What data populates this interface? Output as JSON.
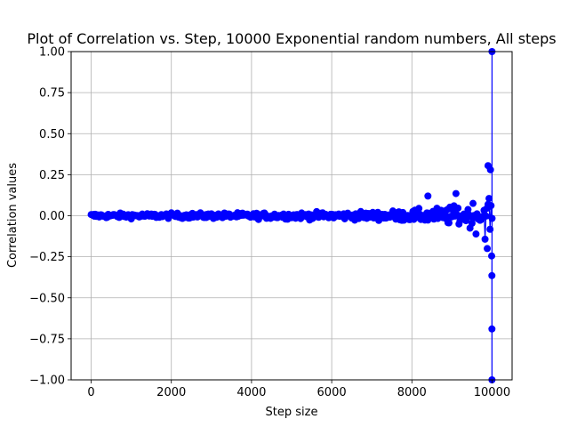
{
  "chart_data": {
    "type": "scatter",
    "title": "Plot of Correlation vs. Step, 10000 Exponential random numbers, All steps",
    "xlabel": "Step size",
    "ylabel": "Correlation values",
    "xlim": [
      -500,
      10500
    ],
    "ylim": [
      -1.0,
      1.0
    ],
    "xticks": [
      0,
      2000,
      4000,
      6000,
      8000,
      10000
    ],
    "xtick_labels": [
      "0",
      "2000",
      "4000",
      "6000",
      "8000",
      "10000"
    ],
    "yticks": [
      -1.0,
      -0.75,
      -0.5,
      -0.25,
      0.0,
      0.25,
      0.5,
      0.75,
      1.0
    ],
    "ytick_labels": [
      "−1.00",
      "−0.75",
      "−0.50",
      "−0.25",
      "0.00",
      "0.25",
      "0.50",
      "0.75",
      "1.00"
    ],
    "grid": true,
    "marker_color": "#0000ff",
    "series": [
      {
        "name": "Correlation",
        "envelope": {
          "step": [
            0,
            2000,
            4000,
            6000,
            7000,
            8000,
            8500,
            9000,
            9500,
            9800,
            9950
          ],
          "spread": [
            0.025,
            0.028,
            0.032,
            0.038,
            0.045,
            0.06,
            0.075,
            0.1,
            0.14,
            0.2,
            0.27
          ]
        },
        "notable_points": [
          {
            "x": 9999,
            "y": 1.0
          },
          {
            "x": 9998,
            "y": -1.0
          },
          {
            "x": 9997,
            "y": -0.69
          },
          {
            "x": 9996,
            "y": -0.365
          },
          {
            "x": 9900,
            "y": 0.305
          },
          {
            "x": 9960,
            "y": 0.28
          },
          {
            "x": 9880,
            "y": -0.2
          },
          {
            "x": 9990,
            "y": -0.245
          },
          {
            "x": 8400,
            "y": 0.12
          },
          {
            "x": 9100,
            "y": 0.135
          }
        ]
      }
    ]
  }
}
